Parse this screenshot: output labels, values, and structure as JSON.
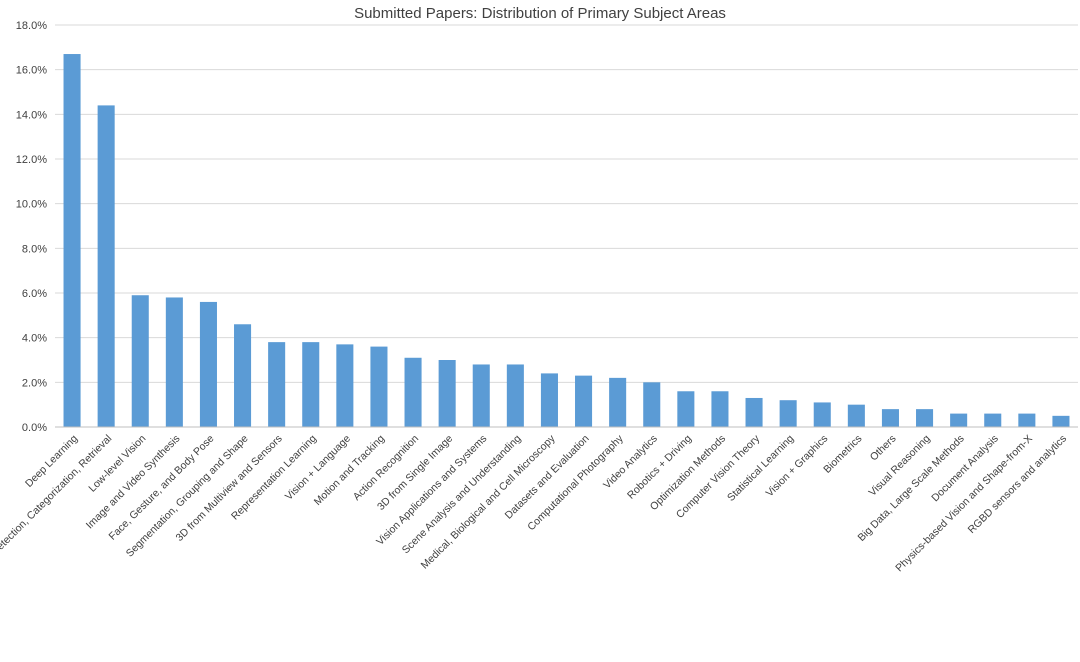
{
  "chart_data": {
    "type": "bar",
    "title": "Submitted Papers: Distribution of Primary Subject Areas",
    "xlabel": "",
    "ylabel": "",
    "ylim": [
      0,
      18
    ],
    "ytick_step": 2,
    "ytick_format": "percent-1dp",
    "grid": true,
    "bar_color": "#5b9bd5",
    "categories": [
      "Deep Learning",
      "Recognition: Detection, Categorization, Retrieval",
      "Low-level Vision",
      "Image and Video Synthesis",
      "Face, Gesture, and Body Pose",
      "Segmentation, Grouping and Shape",
      "3D from Multiview and Sensors",
      "Representation Learning",
      "Vision + Language",
      "Motion and Tracking",
      "Action Recognition",
      "3D from Single Image",
      "Vision Applications and Systems",
      "Scene Analysis and Understanding",
      "Medical, Biological and Cell Microscopy",
      "Datasets and Evaluation",
      "Computational Photography",
      "Video Analytics",
      "Robotics + Driving",
      "Optimization Methods",
      "Computer Vision Theory",
      "Statistical Learning",
      "Vision + Graphics",
      "Biometrics",
      "Others",
      "Visual Reasoning",
      "Big Data, Large Scale Methods",
      "Document Analysis",
      "Physics-based Vision and Shape-from-X",
      "RGBD sensors and analytics"
    ],
    "values": [
      16.7,
      14.4,
      5.9,
      5.8,
      5.6,
      4.6,
      3.8,
      3.8,
      3.7,
      3.6,
      3.1,
      3.0,
      2.8,
      2.8,
      2.4,
      2.3,
      2.2,
      2.0,
      1.6,
      1.6,
      1.3,
      1.2,
      1.1,
      1.0,
      0.8,
      0.8,
      0.6,
      0.6,
      0.6,
      0.5
    ]
  }
}
